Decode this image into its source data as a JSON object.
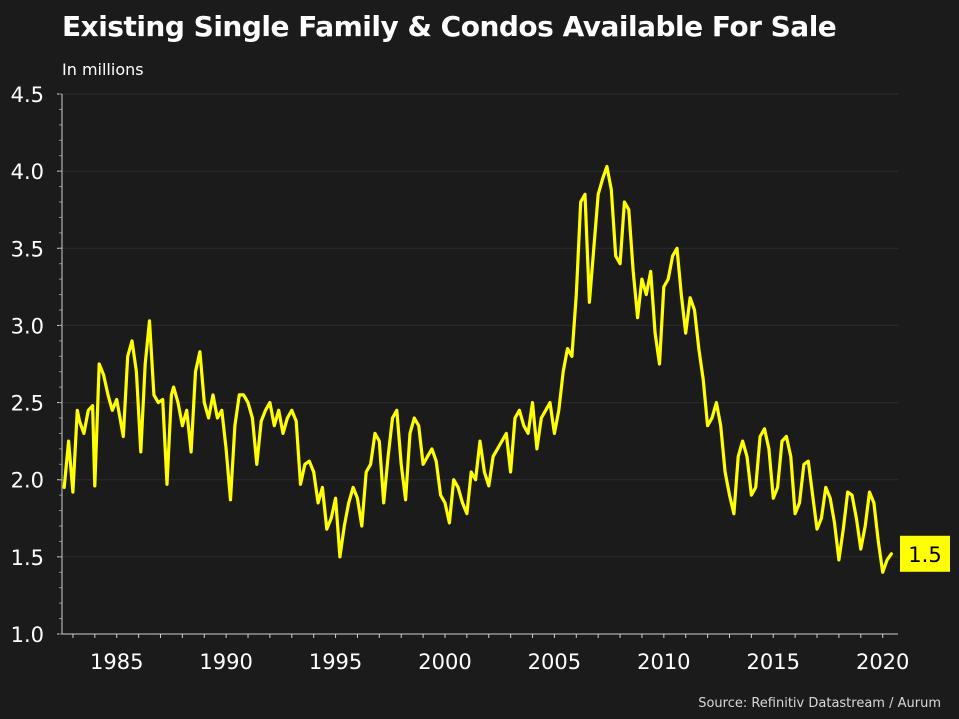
{
  "chart_data": {
    "type": "line",
    "title": "Existing Single Family & Condos Available For Sale",
    "subtitle": "In millions",
    "source": "Source: Refinitiv Datastream / Aurum",
    "xlabel": "",
    "ylabel": "",
    "xlim": [
      1982.5,
      2020.7
    ],
    "ylim": [
      1.0,
      4.5
    ],
    "y_ticks": [
      "1.0",
      "1.5",
      "2.0",
      "2.5",
      "3.0",
      "3.5",
      "4.0",
      "4.5"
    ],
    "x_ticks": [
      "1985",
      "1990",
      "1995",
      "2000",
      "2005",
      "2010",
      "2015",
      "2020"
    ],
    "grid": true,
    "line_color": "#ffff00",
    "last_value_label": "1.5",
    "series": [
      {
        "x": [
          1982.6,
          1982.8,
          1983.0,
          1983.2,
          1983.3,
          1983.5,
          1983.7,
          1983.9,
          1984.0,
          1984.2,
          1984.4,
          1984.6,
          1984.8,
          1985.0,
          1985.3,
          1985.5,
          1985.7,
          1985.9,
          1986.1,
          1986.3,
          1986.5,
          1986.7,
          1986.9,
          1987.1,
          1987.3,
          1987.5,
          1987.6,
          1987.8,
          1988.0,
          1988.2,
          1988.4,
          1988.6,
          1988.8,
          1989.0,
          1989.2,
          1989.4,
          1989.6,
          1989.8,
          1990.0,
          1990.2,
          1990.4,
          1990.6,
          1990.8,
          1991.0,
          1991.2,
          1991.4,
          1991.6,
          1991.8,
          1992.0,
          1992.2,
          1992.4,
          1992.6,
          1992.8,
          1993.0,
          1993.2,
          1993.4,
          1993.6,
          1993.8,
          1994.0,
          1994.2,
          1994.4,
          1994.6,
          1994.8,
          1995.0,
          1995.2,
          1995.4,
          1995.6,
          1995.8,
          1996.0,
          1996.2,
          1996.4,
          1996.6,
          1996.8,
          1997.0,
          1997.2,
          1997.4,
          1997.6,
          1997.8,
          1998.0,
          1998.2,
          1998.4,
          1998.6,
          1998.8,
          1999.0,
          1999.2,
          1999.4,
          1999.6,
          1999.8,
          2000.0,
          2000.2,
          2000.4,
          2000.6,
          2000.8,
          2001.0,
          2001.2,
          2001.4,
          2001.6,
          2001.8,
          2002.0,
          2002.2,
          2002.4,
          2002.6,
          2002.8,
          2003.0,
          2003.2,
          2003.4,
          2003.6,
          2003.8,
          2004.0,
          2004.2,
          2004.4,
          2004.6,
          2004.8,
          2005.0,
          2005.2,
          2005.4,
          2005.6,
          2005.8,
          2006.0,
          2006.2,
          2006.4,
          2006.6,
          2006.8,
          2007.0,
          2007.2,
          2007.4,
          2007.6,
          2007.8,
          2008.0,
          2008.2,
          2008.4,
          2008.6,
          2008.8,
          2009.0,
          2009.2,
          2009.4,
          2009.6,
          2009.8,
          2010.0,
          2010.2,
          2010.4,
          2010.6,
          2010.8,
          2011.0,
          2011.2,
          2011.4,
          2011.6,
          2011.8,
          2012.0,
          2012.2,
          2012.4,
          2012.6,
          2012.8,
          2013.0,
          2013.2,
          2013.4,
          2013.6,
          2013.8,
          2014.0,
          2014.2,
          2014.4,
          2014.6,
          2014.8,
          2015.0,
          2015.2,
          2015.4,
          2015.6,
          2015.8,
          2016.0,
          2016.2,
          2016.4,
          2016.6,
          2016.8,
          2017.0,
          2017.2,
          2017.4,
          2017.6,
          2017.8,
          2018.0,
          2018.2,
          2018.4,
          2018.6,
          2018.8,
          2019.0,
          2019.2,
          2019.4,
          2019.6,
          2019.8,
          2020.0,
          2020.2,
          2020.4
        ],
        "values": [
          1.95,
          2.25,
          1.92,
          2.45,
          2.38,
          2.3,
          2.45,
          2.48,
          1.96,
          2.75,
          2.68,
          2.55,
          2.45,
          2.52,
          2.28,
          2.8,
          2.9,
          2.7,
          2.18,
          2.75,
          3.03,
          2.55,
          2.5,
          2.52,
          1.97,
          2.55,
          2.6,
          2.5,
          2.35,
          2.45,
          2.18,
          2.7,
          2.83,
          2.5,
          2.4,
          2.55,
          2.4,
          2.45,
          2.2,
          1.87,
          2.35,
          2.55,
          2.55,
          2.5,
          2.4,
          2.1,
          2.38,
          2.45,
          2.5,
          2.35,
          2.45,
          2.3,
          2.4,
          2.45,
          2.38,
          1.97,
          2.1,
          2.12,
          2.05,
          1.85,
          1.95,
          1.68,
          1.75,
          1.88,
          1.5,
          1.7,
          1.85,
          1.95,
          1.88,
          1.7,
          2.05,
          2.1,
          2.3,
          2.25,
          1.85,
          2.15,
          2.4,
          2.45,
          2.1,
          1.87,
          2.3,
          2.4,
          2.35,
          2.1,
          2.15,
          2.2,
          2.12,
          1.9,
          1.85,
          1.72,
          2.0,
          1.95,
          1.85,
          1.78,
          2.05,
          2.0,
          2.25,
          2.05,
          1.96,
          2.15,
          2.2,
          2.25,
          2.3,
          2.05,
          2.4,
          2.45,
          2.35,
          2.3,
          2.5,
          2.2,
          2.4,
          2.45,
          2.5,
          2.3,
          2.45,
          2.7,
          2.85,
          2.8,
          3.2,
          3.8,
          3.85,
          3.15,
          3.5,
          3.85,
          3.95,
          4.03,
          3.88,
          3.45,
          3.4,
          3.8,
          3.75,
          3.35,
          3.05,
          3.3,
          3.2,
          3.35,
          2.95,
          2.75,
          3.25,
          3.3,
          3.45,
          3.5,
          3.2,
          2.95,
          3.18,
          3.1,
          2.85,
          2.65,
          2.35,
          2.4,
          2.5,
          2.35,
          2.05,
          1.9,
          1.78,
          2.15,
          2.25,
          2.15,
          1.9,
          1.95,
          2.28,
          2.33,
          2.2,
          1.88,
          1.95,
          2.25,
          2.28,
          2.15,
          1.78,
          1.85,
          2.1,
          2.12,
          1.9,
          1.68,
          1.75,
          1.95,
          1.88,
          1.72,
          1.48,
          1.68,
          1.92,
          1.9,
          1.75,
          1.55,
          1.7,
          1.92,
          1.85,
          1.6,
          1.4,
          1.48,
          1.52
        ]
      }
    ]
  }
}
